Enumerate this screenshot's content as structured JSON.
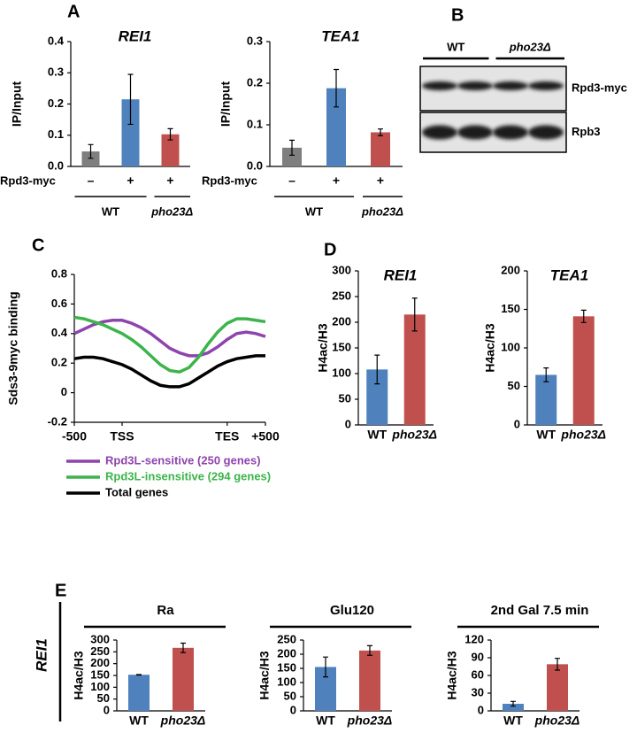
{
  "chart_data": [
    {
      "type": "bar",
      "panel": "A",
      "title": "REI1",
      "y_label": "IP/Input",
      "row_label": "Rpd3-myc",
      "categories": [
        "–",
        "+",
        "+"
      ],
      "values": [
        0.048,
        0.215,
        0.103
      ],
      "errors": [
        0.022,
        0.08,
        0.018
      ],
      "colors": [
        "#7f7f7f",
        "#4f81bd",
        "#c0504d"
      ],
      "groups": [
        "WT",
        "pho23Δ"
      ],
      "ylim": [
        0,
        0.4
      ],
      "yticks": [
        {
          "value": 0,
          "label": "0.0"
        },
        0.1,
        0.2,
        0.3,
        0.4
      ]
    },
    {
      "type": "bar",
      "title": "TEA1",
      "y_label": "IP/Input",
      "row_label": "Rpd3-myc",
      "categories": [
        "–",
        "+",
        "+"
      ],
      "values": [
        0.045,
        0.188,
        0.082
      ],
      "errors": [
        0.018,
        0.045,
        0.008
      ],
      "colors": [
        "#7f7f7f",
        "#4f81bd",
        "#c0504d"
      ],
      "groups": [
        "WT",
        "pho23Δ"
      ],
      "ylim": [
        0,
        0.3
      ],
      "yticks": [
        {
          "value": 0,
          "label": "0.0"
        },
        0.1,
        0.2,
        0.3
      ]
    },
    {
      "type": "blot",
      "panel": "B",
      "groups": [
        "WT",
        "pho23Δ"
      ],
      "rows": [
        "Rpd3-myc",
        "Rpb3"
      ]
    },
    {
      "type": "line",
      "panel": "C",
      "y_label": "Sds3-9myc binding",
      "x": [
        "-500",
        null,
        null,
        null,
        null,
        "TSS",
        null,
        null,
        null,
        null,
        null,
        null,
        null,
        null,
        null,
        null,
        "TES",
        null,
        null,
        null,
        "+500"
      ],
      "series": [
        {
          "name": "Rpd3L-sensitive (250 genes)",
          "color": "#8e44ad",
          "values": [
            0.4,
            0.43,
            0.46,
            0.48,
            0.49,
            0.49,
            0.47,
            0.44,
            0.4,
            0.35,
            0.3,
            0.27,
            0.25,
            0.25,
            0.27,
            0.31,
            0.36,
            0.4,
            0.41,
            0.4,
            0.38
          ]
        },
        {
          "name": "Rpd3L-insensitive (294 genes)",
          "color": "#3cb44b",
          "values": [
            0.51,
            0.5,
            0.48,
            0.46,
            0.43,
            0.4,
            0.36,
            0.31,
            0.25,
            0.19,
            0.15,
            0.14,
            0.17,
            0.24,
            0.33,
            0.41,
            0.47,
            0.5,
            0.5,
            0.49,
            0.48
          ]
        },
        {
          "name": "Total genes",
          "color": "#000000",
          "values": [
            0.23,
            0.24,
            0.24,
            0.23,
            0.21,
            0.19,
            0.16,
            0.12,
            0.08,
            0.05,
            0.04,
            0.04,
            0.06,
            0.1,
            0.14,
            0.18,
            0.21,
            0.23,
            0.24,
            0.25,
            0.25
          ]
        }
      ],
      "ylim": [
        -0.2,
        0.8
      ],
      "yticks": [
        -0.2,
        0,
        0.2,
        0.4,
        0.6,
        0.8
      ]
    },
    {
      "type": "bar",
      "panel": "D",
      "title": "REI1",
      "y_label": "H4ac/H3",
      "categories": [
        "WT",
        "pho23Δ"
      ],
      "values": [
        108,
        215
      ],
      "errors": [
        28,
        32
      ],
      "colors": [
        "#4f81bd",
        "#c0504d"
      ],
      "ylim": [
        0,
        300
      ],
      "yticks": [
        0,
        50,
        100,
        150,
        200,
        250,
        300
      ]
    },
    {
      "type": "bar",
      "title": "TEA1",
      "y_label": "H4ac/H3",
      "categories": [
        "WT",
        "pho23Δ"
      ],
      "values": [
        65,
        141
      ],
      "errors": [
        9,
        8
      ],
      "colors": [
        "#4f81bd",
        "#c0504d"
      ],
      "ylim": [
        0,
        200
      ],
      "yticks": [
        0,
        50,
        100,
        150,
        200
      ]
    },
    {
      "type": "bar",
      "panel": "E",
      "side_label": "REI1",
      "title": "Ra",
      "y_label": "H4ac/H3",
      "categories": [
        "WT",
        "pho23Δ"
      ],
      "values": [
        153,
        267
      ],
      "errors": [
        1,
        20
      ],
      "colors": [
        "#4f81bd",
        "#c0504d"
      ],
      "ylim": [
        0,
        300
      ],
      "yticks": [
        0,
        50,
        100,
        150,
        200,
        250,
        300
      ]
    },
    {
      "type": "bar",
      "title": "Glu120",
      "y_label": "H4ac/H3",
      "categories": [
        "WT",
        "pho23Δ"
      ],
      "values": [
        155,
        213
      ],
      "errors": [
        35,
        17
      ],
      "colors": [
        "#4f81bd",
        "#c0504d"
      ],
      "ylim": [
        0,
        250
      ],
      "yticks": [
        0,
        50,
        100,
        150,
        200,
        250
      ]
    },
    {
      "type": "bar",
      "title": "2nd Gal 7.5 min",
      "y_label": "H4ac/H3",
      "categories": [
        "WT",
        "pho23Δ"
      ],
      "values": [
        12,
        79
      ],
      "errors": [
        4,
        10
      ],
      "colors": [
        "#4f81bd",
        "#c0504d"
      ],
      "ylim": [
        0,
        120
      ],
      "yticks": [
        0,
        30,
        60,
        90,
        120
      ]
    }
  ]
}
